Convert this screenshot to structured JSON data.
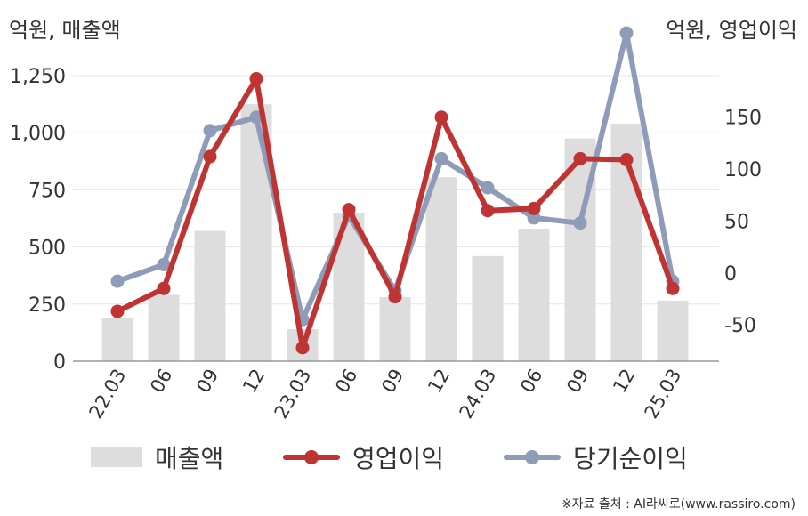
{
  "units": {
    "left": "억원, 매출액",
    "right": "억원, 영업이익"
  },
  "source": "※자료 출처 : AI라씨로(www.rassiro.com)",
  "colors": {
    "bar": "#dddddd",
    "operating": "#c03333",
    "net": "#8e9cb8",
    "grid": "#e6e6e6",
    "axis": "#999999",
    "text": "#333333"
  },
  "legend": [
    {
      "key": "revenue",
      "label": "매출액",
      "kind": "bar"
    },
    {
      "key": "operating",
      "label": "영업이익",
      "kind": "line"
    },
    {
      "key": "net",
      "label": "당기순이익",
      "kind": "line"
    }
  ],
  "chart_data": {
    "type": "bar+line",
    "categories": [
      "22.03",
      "06",
      "09",
      "12",
      "23.03",
      "06",
      "09",
      "12",
      "24.03",
      "06",
      "09",
      "12",
      "25.03"
    ],
    "left_axis": {
      "ylim": [
        0,
        1250
      ],
      "ticks": [
        0,
        250,
        500,
        750,
        1000,
        1250
      ],
      "tick_labels": [
        "0",
        "250",
        "500",
        "750",
        "1,000",
        "1,250"
      ]
    },
    "right_axis": {
      "ylim": [
        -85,
        190
      ],
      "ticks": [
        -50,
        0,
        50,
        100,
        150
      ],
      "tick_labels": [
        "-50",
        "0",
        "50",
        "100",
        "150"
      ]
    },
    "grid": true,
    "legend_position": "bottom",
    "series": [
      {
        "name": "매출액",
        "axis": "left",
        "kind": "bar",
        "values": [
          190,
          290,
          570,
          1125,
          140,
          650,
          280,
          805,
          460,
          580,
          975,
          1040,
          265
        ]
      },
      {
        "name": "영업이익",
        "axis": "right",
        "kind": "line",
        "values": [
          -37,
          -15,
          112,
          187,
          -72,
          61,
          -23,
          150,
          60,
          62,
          110,
          109,
          -15
        ]
      },
      {
        "name": "당기순이익",
        "axis": "right",
        "kind": "line",
        "values": [
          -8,
          8,
          137,
          150,
          -45,
          55,
          -17,
          110,
          82,
          53,
          48,
          231,
          -8
        ]
      }
    ]
  }
}
